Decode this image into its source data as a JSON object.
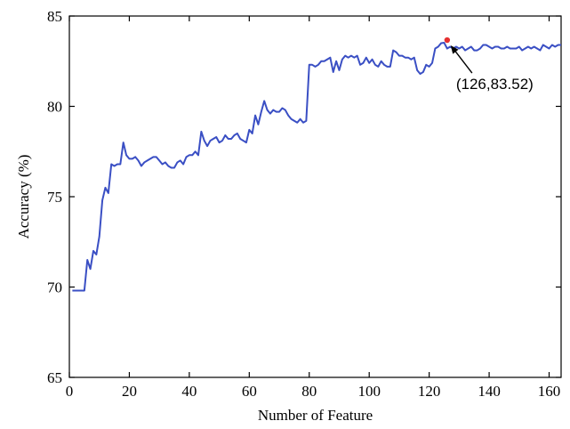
{
  "chart_data": {
    "type": "line",
    "title": "",
    "xlabel": "Number of Feature",
    "ylabel": "Accuracy (%)",
    "xlim": [
      0,
      164
    ],
    "ylim": [
      65,
      85
    ],
    "xticks": [
      0,
      20,
      40,
      60,
      80,
      100,
      120,
      140,
      160
    ],
    "yticks": [
      65,
      70,
      75,
      80,
      85
    ],
    "grid": false,
    "legend": "none",
    "colors": {
      "line": "#3a4fc4",
      "highlight": "#e53030",
      "arrow": "#000000"
    },
    "series": [
      {
        "x": [
          1,
          2,
          3,
          4,
          5,
          6,
          7,
          8,
          9,
          10,
          11,
          12,
          13,
          14,
          15,
          16,
          17,
          18,
          19,
          20,
          21,
          22,
          23,
          24,
          25,
          26,
          27,
          28,
          29,
          30,
          31,
          32,
          33,
          34,
          35,
          36,
          37,
          38,
          39,
          40,
          41,
          42,
          43,
          44,
          45,
          46,
          47,
          48,
          49,
          50,
          51,
          52,
          53,
          54,
          55,
          56,
          57,
          58,
          59,
          60,
          61,
          62,
          63,
          64,
          65,
          66,
          67,
          68,
          69,
          70,
          71,
          72,
          73,
          74,
          75,
          76,
          77,
          78,
          79,
          80,
          81,
          82,
          83,
          84,
          85,
          86,
          87,
          88,
          89,
          90,
          91,
          92,
          93,
          94,
          95,
          96,
          97,
          98,
          99,
          100,
          101,
          102,
          103,
          104,
          105,
          106,
          107,
          108,
          109,
          110,
          111,
          112,
          113,
          114,
          115,
          116,
          117,
          118,
          119,
          120,
          121,
          122,
          123,
          124,
          125,
          126,
          127,
          128,
          129,
          130,
          131,
          132,
          133,
          134,
          135,
          136,
          137,
          138,
          139,
          140,
          141,
          142,
          143,
          144,
          145,
          146,
          147,
          148,
          149,
          150,
          151,
          152,
          153,
          154,
          155,
          156,
          157,
          158,
          159,
          160,
          161,
          162,
          163,
          164
        ],
        "values": [
          69.8,
          69.8,
          69.8,
          69.8,
          69.8,
          71.5,
          71.0,
          72.0,
          71.8,
          72.8,
          74.8,
          75.5,
          75.2,
          76.8,
          76.7,
          76.8,
          76.8,
          78.0,
          77.3,
          77.1,
          77.1,
          77.2,
          77.0,
          76.7,
          76.9,
          77.0,
          77.1,
          77.2,
          77.2,
          77.0,
          76.8,
          76.9,
          76.7,
          76.6,
          76.6,
          76.9,
          77.0,
          76.8,
          77.2,
          77.3,
          77.3,
          77.5,
          77.3,
          78.6,
          78.1,
          77.8,
          78.1,
          78.2,
          78.3,
          78.0,
          78.1,
          78.4,
          78.2,
          78.2,
          78.4,
          78.5,
          78.2,
          78.1,
          78.0,
          78.7,
          78.5,
          79.5,
          79.0,
          79.7,
          80.3,
          79.8,
          79.6,
          79.8,
          79.7,
          79.7,
          79.9,
          79.8,
          79.5,
          79.3,
          79.2,
          79.1,
          79.3,
          79.1,
          79.2,
          82.3,
          82.3,
          82.2,
          82.3,
          82.5,
          82.5,
          82.6,
          82.7,
          81.9,
          82.5,
          82.0,
          82.6,
          82.8,
          82.7,
          82.8,
          82.7,
          82.8,
          82.3,
          82.4,
          82.7,
          82.4,
          82.6,
          82.3,
          82.2,
          82.5,
          82.3,
          82.2,
          82.2,
          83.1,
          83.0,
          82.8,
          82.8,
          82.7,
          82.7,
          82.6,
          82.7,
          82.0,
          81.8,
          81.9,
          82.3,
          82.2,
          82.4,
          83.2,
          83.3,
          83.5,
          83.52,
          83.2,
          83.3,
          83.2,
          83.3,
          83.2,
          83.3,
          83.1,
          83.2,
          83.3,
          83.1,
          83.1,
          83.2,
          83.4,
          83.4,
          83.3,
          83.2,
          83.3,
          83.3,
          83.2,
          83.2,
          83.3,
          83.2,
          83.2,
          83.2,
          83.3,
          83.1,
          83.2,
          83.3,
          83.2,
          83.3,
          83.2,
          83.1,
          83.4,
          83.3,
          83.2,
          83.4,
          83.3,
          83.4,
          83.4
        ]
      }
    ],
    "highlight_point": {
      "x": 126,
      "y": 83.52
    },
    "annotation": "(126,83.52)"
  }
}
